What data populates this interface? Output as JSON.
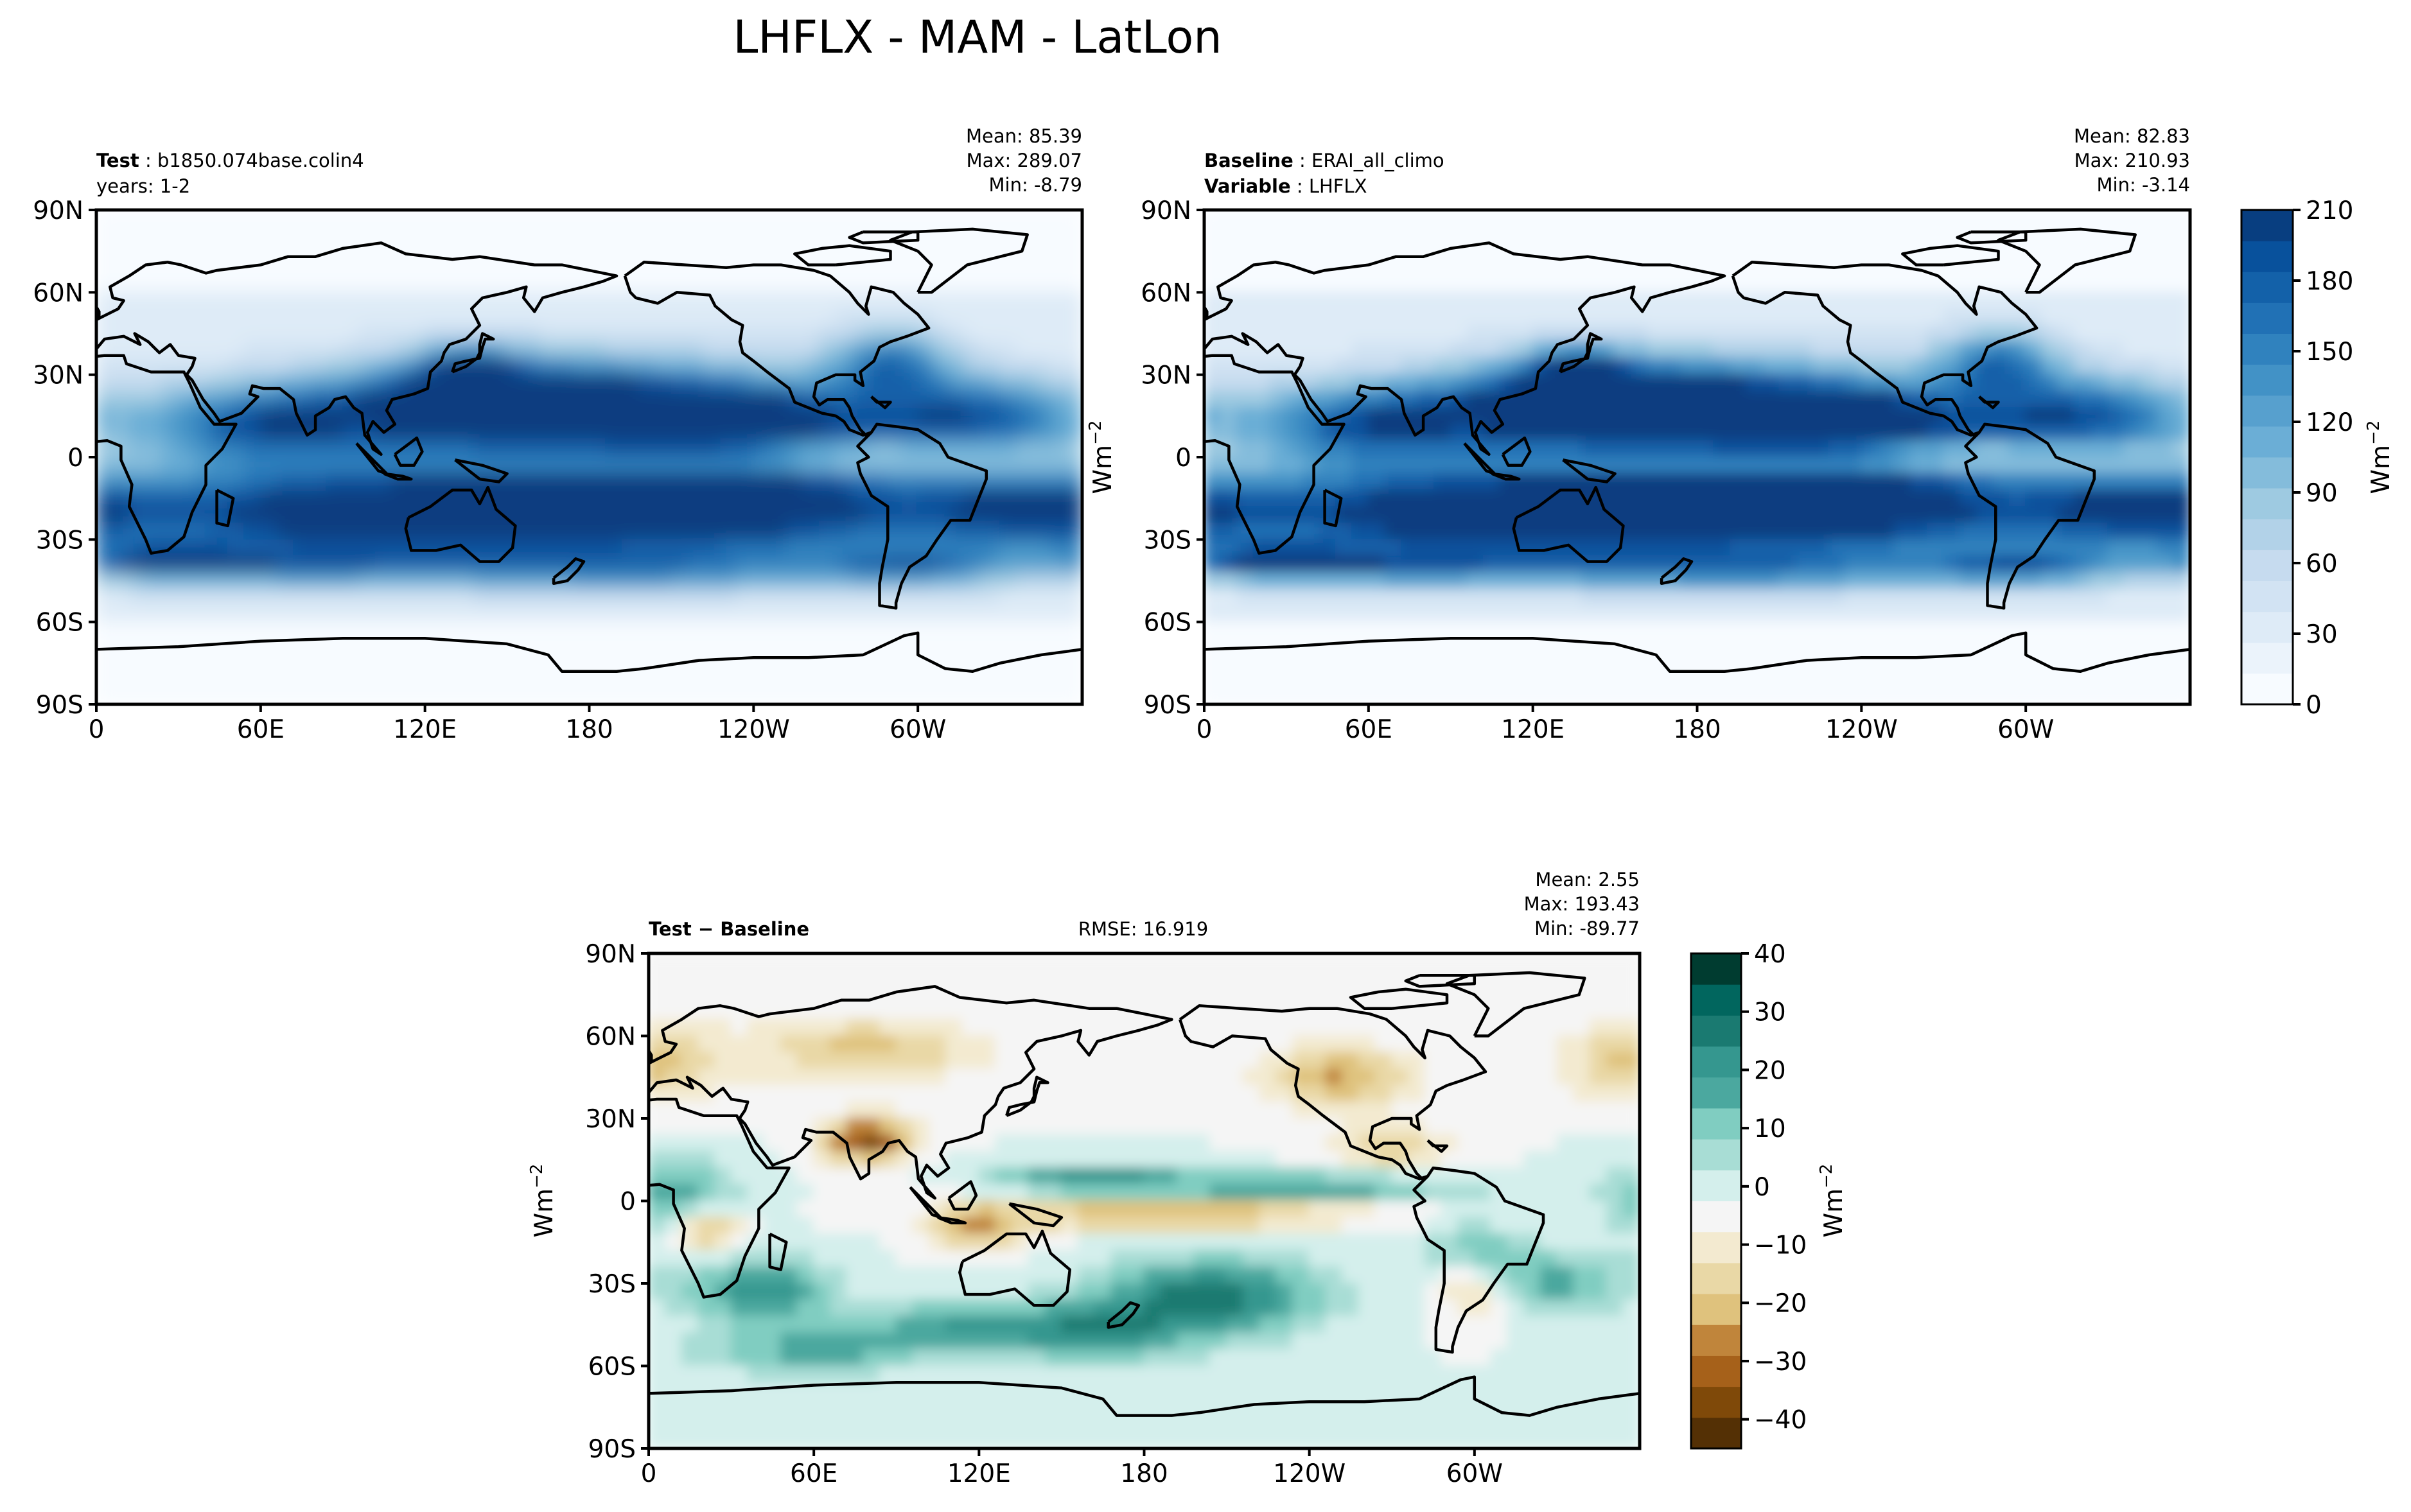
{
  "figure": {
    "title": "LHFLX - MAM - LatLon"
  },
  "colors": {
    "seq": [
      "#f7fbff",
      "#ebf3fb",
      "#deebf7",
      "#d2e3f3",
      "#c6dbef",
      "#b2d2e8",
      "#9ecae1",
      "#84bcdb",
      "#6baed6",
      "#57a0ce",
      "#4292c6",
      "#3082be",
      "#2171b5",
      "#1361a9",
      "#08519c",
      "#083e80"
    ],
    "div": [
      "#543005",
      "#7f4909",
      "#a6611a",
      "#c0853b",
      "#dfc27d",
      "#e9d8a6",
      "#f3ead0",
      "#f5f5f5",
      "#d4efec",
      "#a8ddd5",
      "#80cdc1",
      "#4ba89f",
      "#35978f",
      "#1a7a71",
      "#01665e",
      "#003c30"
    ],
    "coast": "#000000"
  },
  "chart_data": [
    {
      "type": "heatmap",
      "name": "test",
      "header": {
        "test_label": "Test",
        "test_value": "b1850.074base.colin4",
        "years": "years: 1-2"
      },
      "stats": {
        "mean": "Mean: 85.39",
        "max": "Max: 289.07",
        "min": "Min: -8.79"
      },
      "lat_ticks": [
        "90N",
        "60N",
        "30N",
        "0",
        "30S",
        "60S",
        "90S"
      ],
      "lon_ticks": [
        "0",
        "60E",
        "120E",
        "180",
        "120W",
        "60W"
      ],
      "ylim": [
        -90,
        90
      ],
      "xlim": [
        0,
        360
      ],
      "colormap": "seq",
      "range": [
        0,
        210
      ]
    },
    {
      "type": "heatmap",
      "name": "baseline",
      "header": {
        "baseline_label": "Baseline",
        "baseline_value": "ERAI_all_climo",
        "variable_label": "Variable",
        "variable_value": "LHFLX"
      },
      "stats": {
        "mean": "Mean: 82.83",
        "max": "Max: 210.93",
        "min": "Min: -3.14"
      },
      "lat_ticks": [
        "90N",
        "60N",
        "30N",
        "0",
        "30S",
        "60S",
        "90S"
      ],
      "lon_ticks": [
        "0",
        "60E",
        "120E",
        "180",
        "120W",
        "60W"
      ],
      "ylim": [
        -90,
        90
      ],
      "xlim": [
        0,
        360
      ],
      "colormap": "seq",
      "range": [
        0,
        210
      ],
      "ylabel": "Wm",
      "ylabel_exp": "−2"
    },
    {
      "type": "heatmap",
      "name": "difference",
      "header": {
        "diff_label": "Test − Baseline",
        "rmse": "RMSE: 16.919"
      },
      "stats": {
        "mean": "Mean:  2.55",
        "max": "Max: 193.43",
        "min": "Min: -89.77"
      },
      "lat_ticks": [
        "90N",
        "60N",
        "30N",
        "0",
        "30S",
        "60S",
        "90S"
      ],
      "lon_ticks": [
        "0",
        "60E",
        "120E",
        "180",
        "120W",
        "60W"
      ],
      "ylim": [
        -90,
        90
      ],
      "xlim": [
        0,
        360
      ],
      "colormap": "div",
      "range": [
        -45,
        40
      ],
      "ylabel": "Wm",
      "ylabel_exp": "−2"
    }
  ],
  "colorbars": {
    "top": {
      "ticks": [
        "210",
        "180",
        "150",
        "120",
        "90",
        "60",
        "30",
        "0"
      ],
      "label": "Wm",
      "label_exp": "−2",
      "range": [
        0,
        210
      ]
    },
    "bottom": {
      "ticks": [
        "40",
        "30",
        "20",
        "10",
        "0",
        "−10",
        "−20",
        "−30",
        "−40"
      ],
      "label": "Wm",
      "label_exp": "−2",
      "range": [
        -45,
        40
      ]
    }
  }
}
